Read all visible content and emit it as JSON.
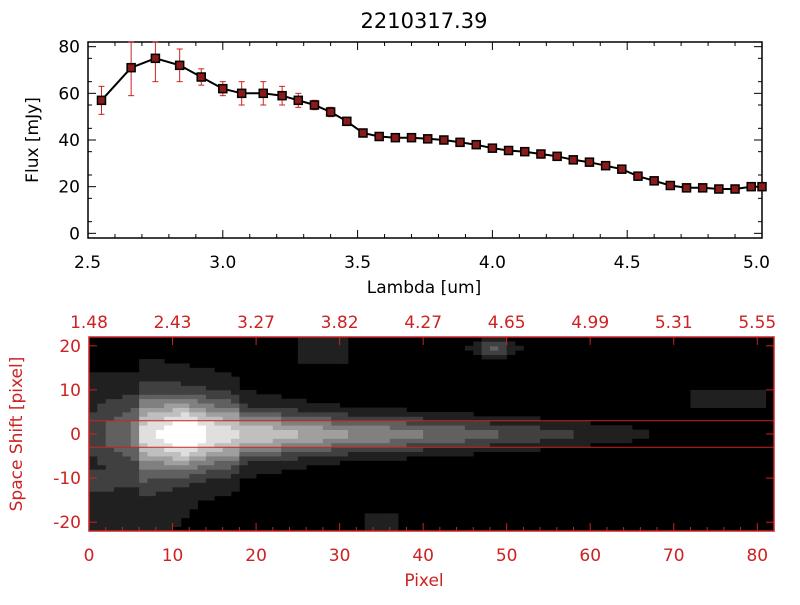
{
  "colors": {
    "background": "#ffffff",
    "axis_black": "#000000",
    "accent_red": "#cc2222",
    "marker_fill": "#8b1a1a",
    "image_bg": "#000000"
  },
  "chart_data": [
    {
      "type": "line",
      "title": "2210317.39",
      "xlabel": "Lambda [um]",
      "ylabel": "Flux [mJy]",
      "xlim": [
        2.5,
        5.0
      ],
      "ylim": [
        -2,
        82
      ],
      "xticks": [
        "2.5",
        "3.0",
        "3.5",
        "4.0",
        "4.5",
        "5.0"
      ],
      "yticks": [
        "0",
        "20",
        "40",
        "60",
        "80"
      ],
      "grid": false,
      "legend": "none",
      "series": [
        {
          "x": [
            2.55,
            2.66,
            2.75,
            2.84,
            2.92,
            3.0,
            3.07,
            3.15,
            3.22,
            3.28,
            3.34,
            3.4,
            3.46,
            3.52,
            3.58,
            3.64,
            3.7,
            3.76,
            3.82,
            3.88,
            3.94,
            4.0,
            4.06,
            4.12,
            4.18,
            4.24,
            4.3,
            4.36,
            4.42,
            4.48,
            4.54,
            4.6,
            4.66,
            4.72,
            4.78,
            4.84,
            4.9,
            4.96,
            5.0
          ],
          "y": [
            57,
            71,
            75,
            72,
            67,
            62,
            60,
            60,
            59,
            57,
            55,
            52,
            48,
            43,
            41.5,
            41,
            41,
            40.5,
            40,
            39,
            38,
            36.5,
            35.5,
            35,
            34,
            33,
            31.5,
            30.5,
            29,
            27.5,
            24.5,
            22.5,
            20.5,
            19.5,
            19.5,
            19,
            19,
            20,
            20
          ],
          "errors": [
            6,
            12,
            10,
            7,
            3.5,
            3,
            5,
            5,
            4,
            3,
            2,
            2,
            1.5,
            1,
            1,
            1,
            1,
            1,
            1,
            1,
            1,
            1,
            1,
            1,
            1,
            1,
            1,
            1,
            1,
            1,
            1,
            1,
            1,
            1,
            1,
            1,
            1,
            1,
            1
          ]
        }
      ]
    },
    {
      "type": "heatmap",
      "xlabel": "Pixel",
      "ylabel": "Space Shift [pixel]",
      "xlim": [
        0,
        82
      ],
      "ylim": [
        -22,
        22
      ],
      "xticks": [
        "0",
        "10",
        "20",
        "30",
        "40",
        "50",
        "60",
        "70",
        "80"
      ],
      "yticks": [
        "-20",
        "-10",
        "0",
        "10",
        "20"
      ],
      "top_axis_labels": [
        "1.48",
        "2.43",
        "3.27",
        "3.82",
        "4.27",
        "4.65",
        "4.99",
        "5.31",
        "5.55"
      ],
      "extraction_lines": [
        3,
        -3
      ]
    }
  ]
}
